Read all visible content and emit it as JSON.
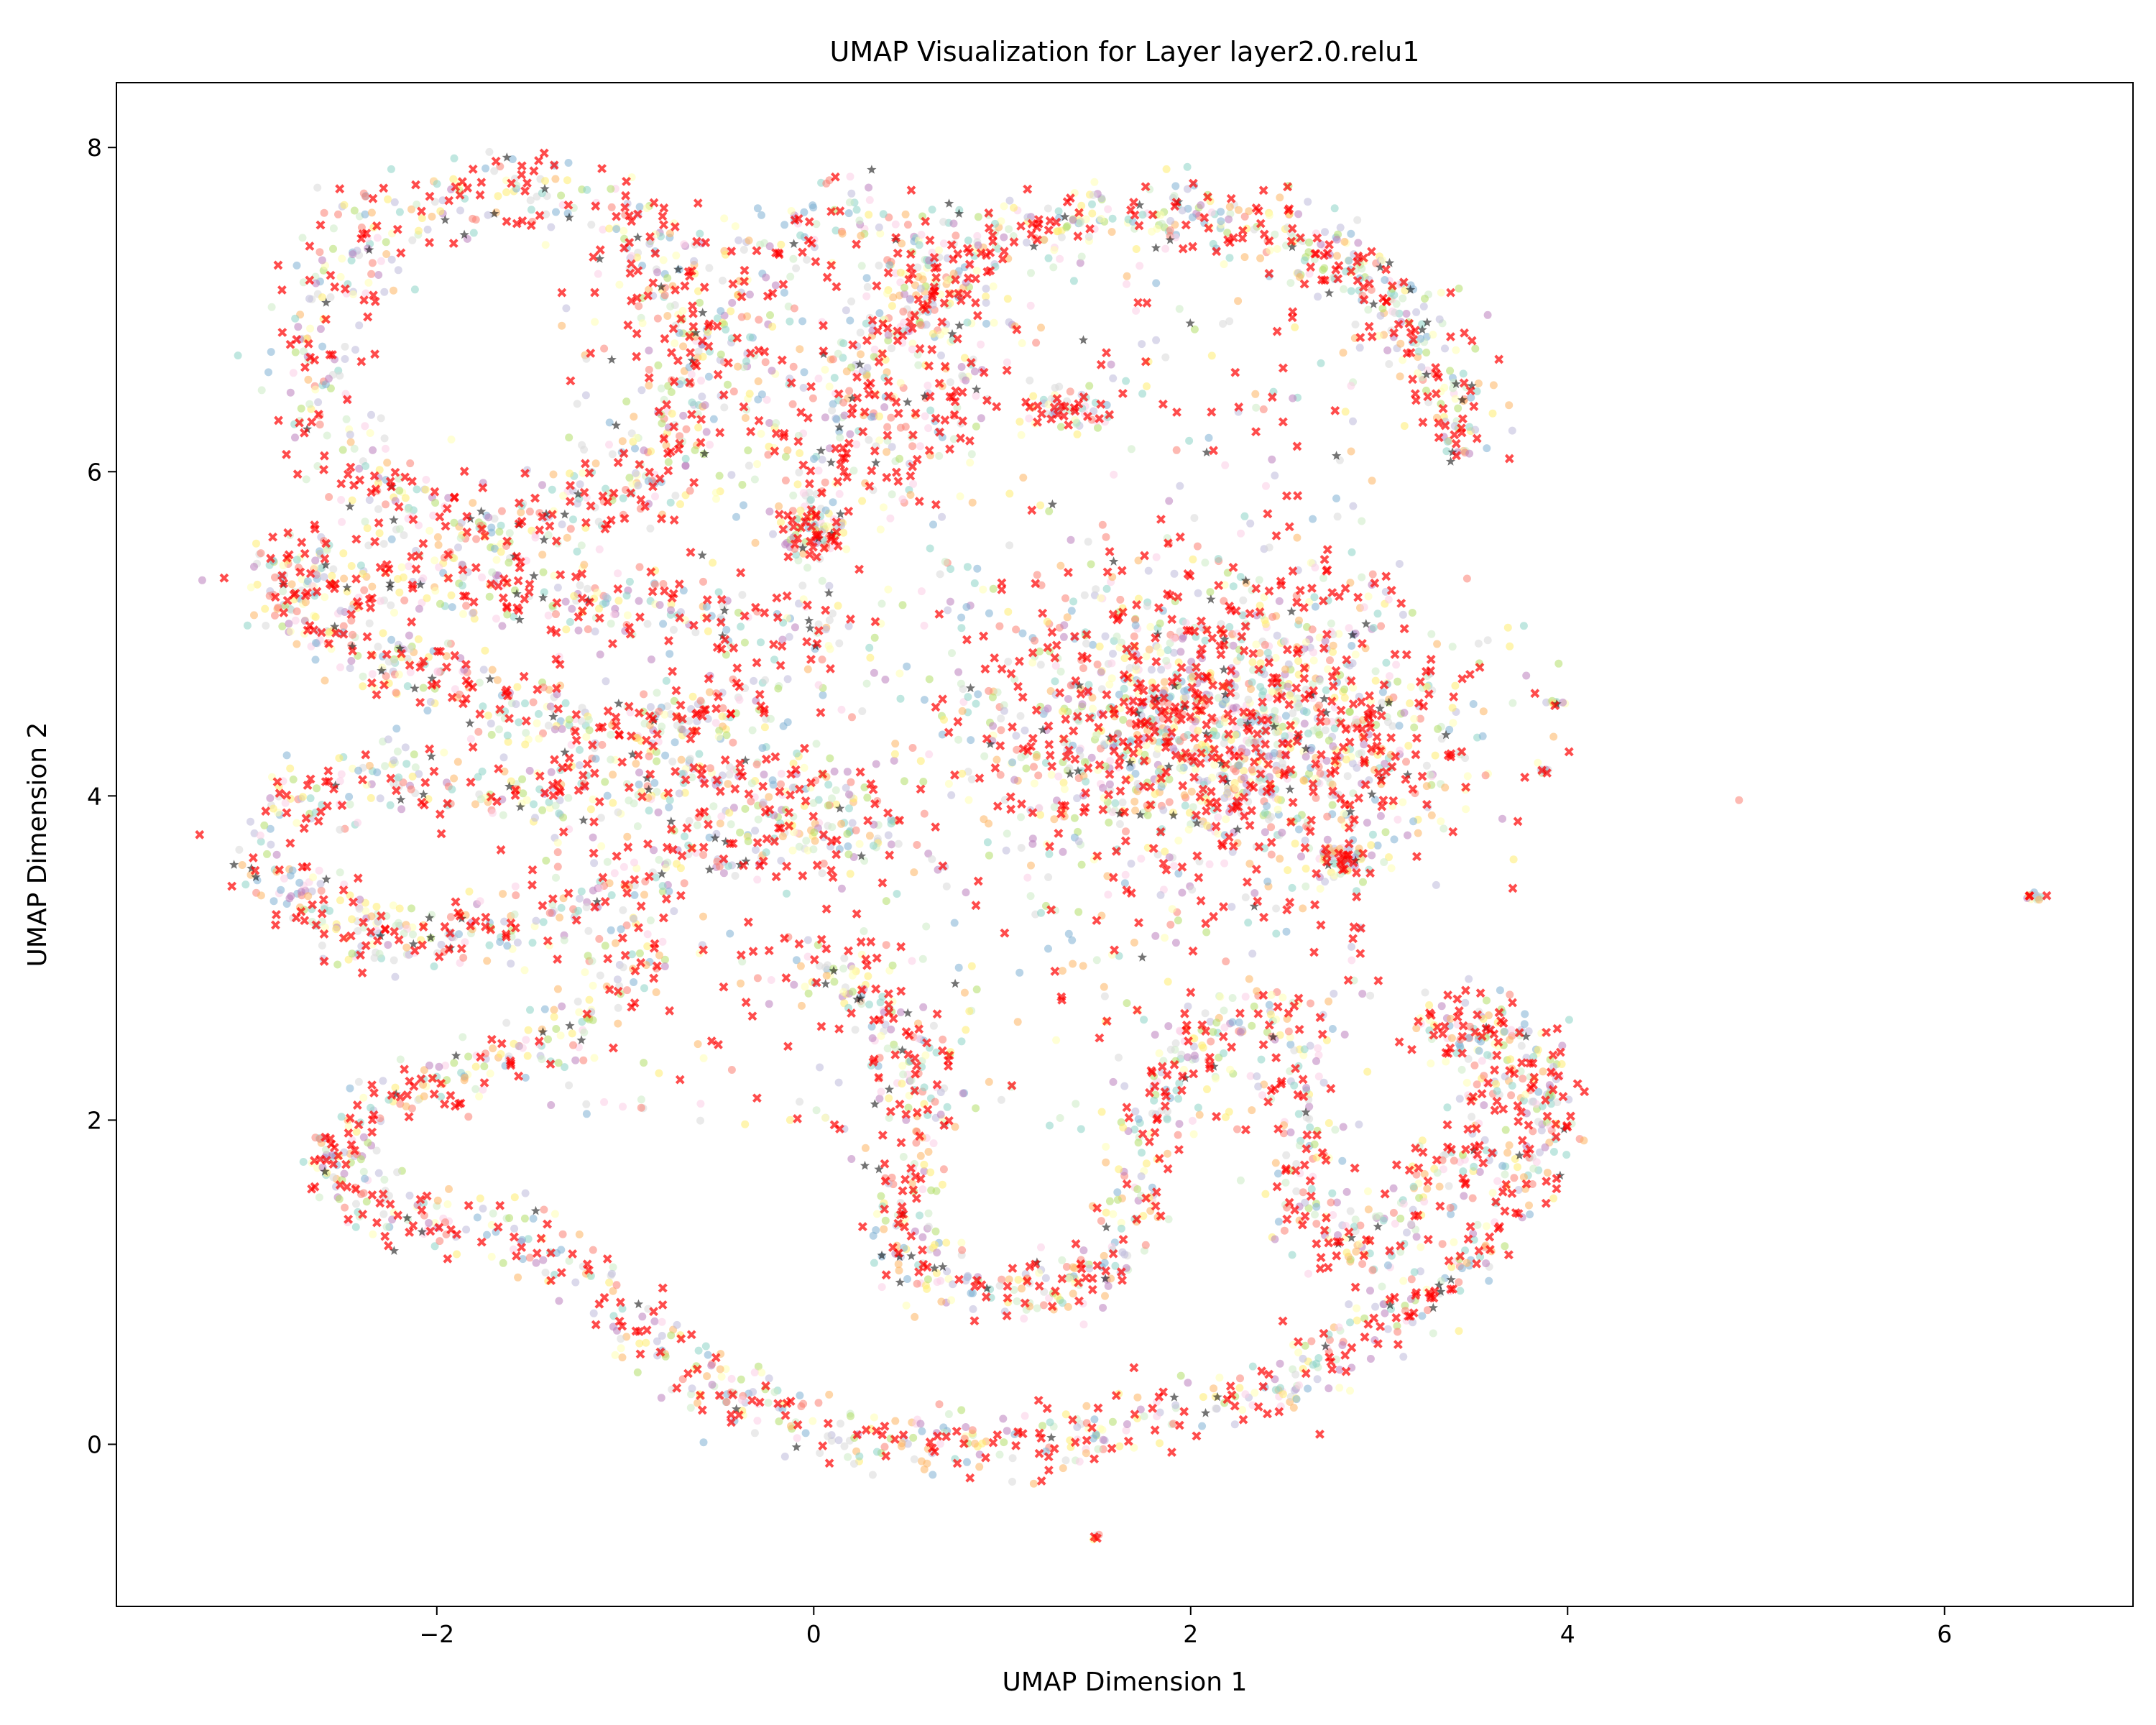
{
  "chart_data": {
    "type": "scatter",
    "title": "UMAP Visualization for Layer layer2.0.relu1",
    "xlabel": "UMAP Dimension 1",
    "ylabel": "UMAP Dimension 2",
    "xlim": [
      -3.7,
      7.0
    ],
    "ylim": [
      -1.0,
      8.4
    ],
    "xticks": [
      -2,
      0,
      2,
      4,
      6
    ],
    "yticks": [
      0,
      2,
      4,
      6,
      8
    ],
    "xtick_labels": [
      "−2",
      "0",
      "2",
      "4",
      "6"
    ],
    "ytick_labels": [
      "0",
      "2",
      "4",
      "6",
      "8"
    ],
    "grid": false,
    "legend": "none",
    "marker_styles": {
      "circle_colors": [
        "#8dd3c7",
        "#ffffb3",
        "#bebada",
        "#fb8072",
        "#80b1d3",
        "#fdb462",
        "#b3de69",
        "#fccde5",
        "#d9d9d9",
        "#bc80bd",
        "#ccebc5",
        "#ffed6f"
      ],
      "cross_color": "#ff0000",
      "star_color": "#000000"
    },
    "clusters": [
      {
        "shape": "ring",
        "cx": -1.65,
        "cy": 6.7,
        "rx": 1.0,
        "ry": 1.05,
        "n": 700,
        "spread": 0.14
      },
      {
        "shape": "ring",
        "cx": 0.2,
        "cy": 6.8,
        "rx": 0.55,
        "ry": 0.8,
        "n": 320,
        "spread": 0.12
      },
      {
        "shape": "arc",
        "cx": 1.8,
        "cy": 6.2,
        "rx": 1.6,
        "ry": 1.4,
        "from": 0.0,
        "to": 3.1,
        "n": 650,
        "spread": 0.12
      },
      {
        "shape": "blob",
        "cx": 2.2,
        "cy": 4.4,
        "rx": 1.15,
        "ry": 0.85,
        "n": 1500
      },
      {
        "shape": "blob",
        "cx": 0.0,
        "cy": 5.65,
        "rx": 0.18,
        "ry": 0.15,
        "n": 90
      },
      {
        "shape": "blob",
        "cx": 2.8,
        "cy": 3.6,
        "rx": 0.12,
        "ry": 0.1,
        "n": 60
      },
      {
        "shape": "blob",
        "cx": 1.35,
        "cy": 6.38,
        "rx": 0.25,
        "ry": 0.1,
        "n": 60
      },
      {
        "shape": "band",
        "points": [
          [
            -2.9,
            5.3
          ],
          [
            -2.5,
            5.0
          ],
          [
            -1.8,
            4.6
          ],
          [
            -1.0,
            4.4
          ],
          [
            -0.2,
            4.6
          ]
        ],
        "n": 420,
        "spread": 0.12
      },
      {
        "shape": "band",
        "points": [
          [
            -2.8,
            5.45
          ],
          [
            -2.2,
            5.4
          ],
          [
            -1.4,
            5.2
          ],
          [
            -0.6,
            5.1
          ],
          [
            0.3,
            5.0
          ]
        ],
        "n": 320,
        "spread": 0.12
      },
      {
        "shape": "band",
        "points": [
          [
            -3.0,
            3.6
          ],
          [
            -2.4,
            3.15
          ],
          [
            -1.5,
            3.2
          ],
          [
            -0.6,
            3.7
          ],
          [
            0.4,
            3.8
          ]
        ],
        "n": 420,
        "spread": 0.12
      },
      {
        "shape": "band",
        "points": [
          [
            -2.9,
            3.9
          ],
          [
            -2.2,
            4.1
          ],
          [
            -1.4,
            4.0
          ],
          [
            -0.6,
            4.1
          ],
          [
            0.2,
            4.0
          ]
        ],
        "n": 320,
        "spread": 0.12
      },
      {
        "shape": "band",
        "points": [
          [
            -0.8,
            3.2
          ],
          [
            -1.2,
            2.6
          ],
          [
            -1.8,
            2.3
          ],
          [
            -2.3,
            2.1
          ],
          [
            -2.6,
            1.7
          ],
          [
            -2.2,
            1.4
          ],
          [
            -1.5,
            1.3
          ],
          [
            -1.0,
            0.8
          ],
          [
            -0.5,
            0.35
          ],
          [
            0.0,
            0.1
          ],
          [
            0.5,
            0.0
          ],
          [
            1.1,
            0.0
          ],
          [
            1.7,
            0.15
          ],
          [
            2.3,
            0.3
          ],
          [
            2.7,
            0.5
          ],
          [
            3.1,
            0.8
          ],
          [
            3.5,
            1.2
          ],
          [
            3.8,
            1.7
          ],
          [
            3.9,
            2.2
          ],
          [
            3.7,
            2.6
          ],
          [
            3.2,
            2.6
          ]
        ],
        "n": 1100,
        "spread": 0.1
      },
      {
        "shape": "band",
        "points": [
          [
            0.0,
            3.0
          ],
          [
            0.4,
            2.6
          ],
          [
            0.6,
            2.2
          ],
          [
            0.5,
            1.6
          ],
          [
            0.5,
            1.1
          ],
          [
            0.9,
            0.9
          ],
          [
            1.4,
            1.0
          ],
          [
            1.7,
            1.4
          ],
          [
            1.8,
            2.0
          ],
          [
            2.0,
            2.5
          ],
          [
            2.5,
            2.7
          ],
          [
            2.6,
            2.0
          ],
          [
            2.5,
            1.5
          ],
          [
            2.9,
            1.2
          ],
          [
            3.3,
            1.6
          ],
          [
            3.6,
            2.1
          ],
          [
            3.5,
            2.6
          ]
        ],
        "n": 900,
        "spread": 0.11
      },
      {
        "shape": "scatter",
        "cx": 0.8,
        "cy": 4.8,
        "rx": 2.2,
        "ry": 2.2,
        "n": 900
      },
      {
        "shape": "blob",
        "cx": 3.93,
        "cy": 4.57,
        "rx": 0.04,
        "ry": 0.02,
        "n": 12
      },
      {
        "shape": "blob",
        "cx": 3.87,
        "cy": 4.15,
        "rx": 0.03,
        "ry": 0.02,
        "n": 10
      },
      {
        "shape": "blob",
        "cx": 6.48,
        "cy": 3.38,
        "rx": 0.05,
        "ry": 0.02,
        "n": 18
      },
      {
        "shape": "blob",
        "cx": 1.5,
        "cy": -0.57,
        "rx": 0.02,
        "ry": 0.02,
        "n": 6
      }
    ]
  }
}
